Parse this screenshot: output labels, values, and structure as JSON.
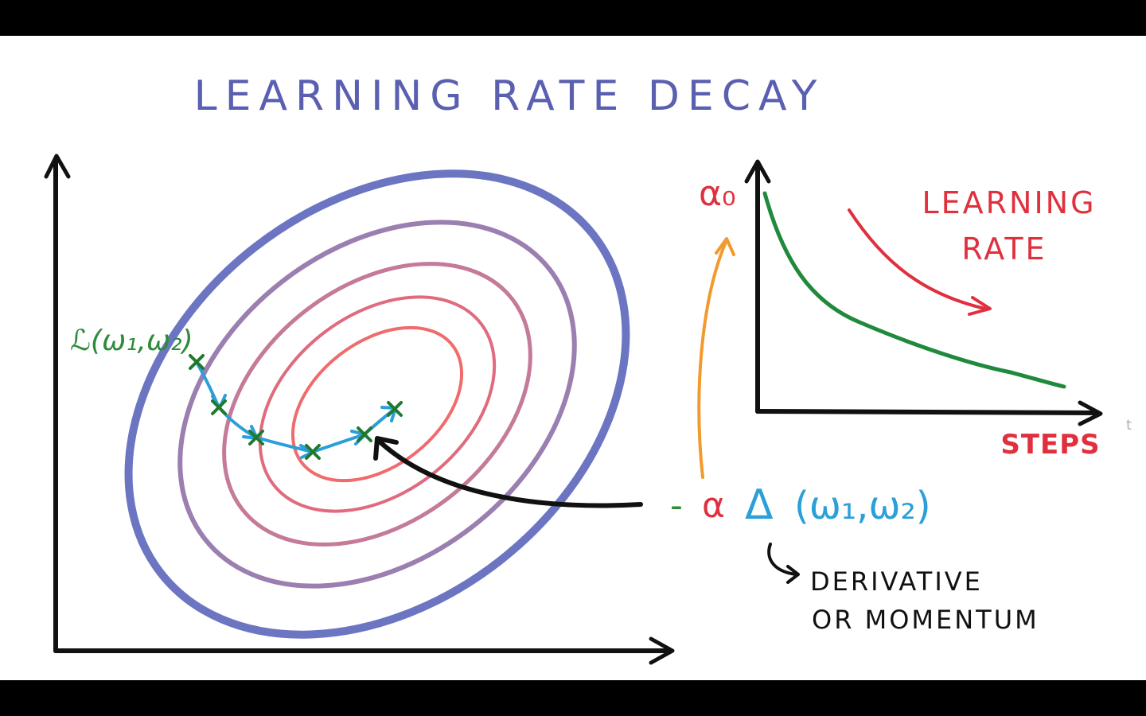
{
  "title": "LEARNING RATE DECAY",
  "left_plot": {
    "loss_label": "ℒ(ω₁,ω₂)"
  },
  "right_plot": {
    "y_start_label": "α₀",
    "curve_label_line1": "LEARNING",
    "curve_label_line2": "RATE",
    "x_axis_label": "STEPS",
    "x_axis_end_mark": "t"
  },
  "update_rule": {
    "minus": "-",
    "alpha": "α",
    "delta": "Δ",
    "args": "(ω₁,ω₂)"
  },
  "delta_note": {
    "line1": "DERIVATIVE",
    "line2": "OR MOMENTUM"
  },
  "colors": {
    "title": "#5a5fb0",
    "axis": "#111111",
    "loss_label": "#2e8b3a",
    "step_path": "#2a9fd8",
    "step_markers": "#1f7a2e",
    "curve": "#1f8a3c",
    "alpha_red": "#e0303e",
    "orange": "#f29a2e",
    "delta_blue": "#2a9fd8",
    "contour_outer": "#6b75c2",
    "contour_2": "#9a7fb0",
    "contour_3": "#c47a98",
    "contour_4": "#e06a7e",
    "contour_inner": "#f06b6b"
  }
}
